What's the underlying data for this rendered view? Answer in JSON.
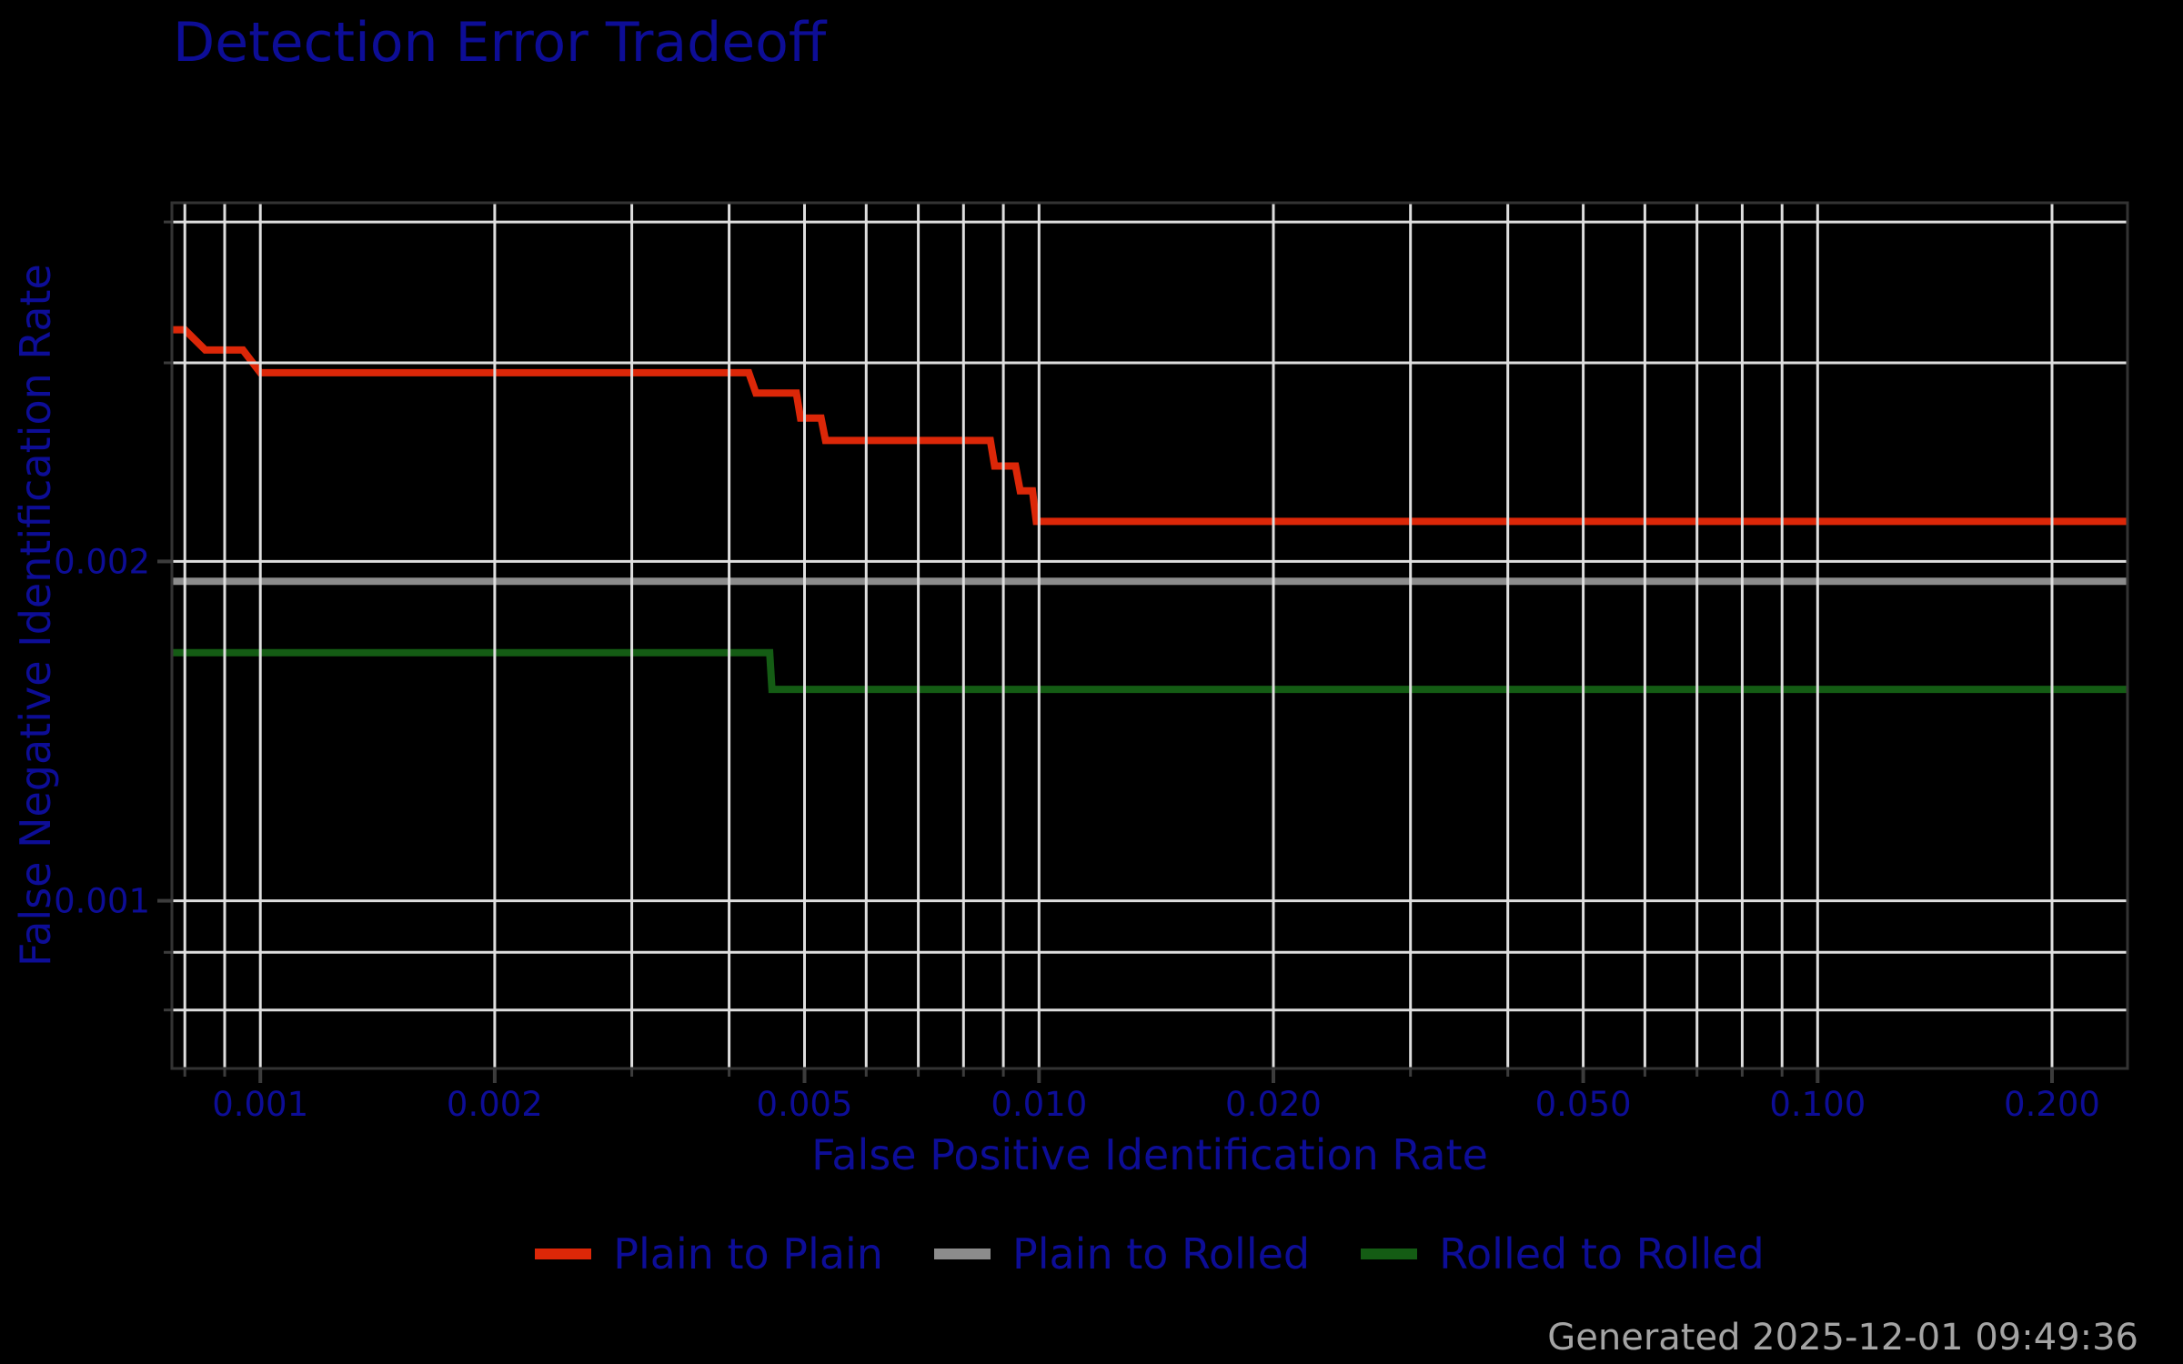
{
  "footer": "Generated 2025-12-01 09:49:36",
  "colors": {
    "background": "#000000",
    "label_blue": "#0d0d96",
    "gridline": "#dedede",
    "spine": "#333333",
    "tick": "#3c3c3c",
    "footer_gray": "#a4a4a4"
  },
  "chart_data": {
    "type": "line",
    "title": "Detection Error Tradeoff",
    "xlabel": "False Positive Identification Rate",
    "ylabel": "False Negative Identification Rate",
    "xscale": "log",
    "yscale": "log",
    "xlim": [
      0.00077,
      0.25
    ],
    "ylim": [
      0.00071,
      0.00416
    ],
    "grid": true,
    "grid_above_data": true,
    "legend_position": "bottom",
    "x_ticks": [
      {
        "value": 0.001,
        "label": "0.001"
      },
      {
        "value": 0.002,
        "label": "0.002"
      },
      {
        "value": 0.005,
        "label": "0.005"
      },
      {
        "value": 0.01,
        "label": "0.010"
      },
      {
        "value": 0.02,
        "label": "0.020"
      },
      {
        "value": 0.05,
        "label": "0.050"
      },
      {
        "value": 0.1,
        "label": "0.100"
      },
      {
        "value": 0.2,
        "label": "0.200"
      }
    ],
    "y_ticks": [
      {
        "value": 0.001,
        "label": "0.001"
      },
      {
        "value": 0.002,
        "label": "0.002"
      }
    ],
    "x_minor_gridlines": [
      0.0008,
      0.0009,
      0.003,
      0.004,
      0.006,
      0.007,
      0.008,
      0.009,
      0.03,
      0.04,
      0.06,
      0.07,
      0.08,
      0.09
    ],
    "y_minor_gridlines": [
      0.0008,
      0.0009,
      0.003,
      0.004
    ],
    "series": [
      {
        "name": "Plain to Plain",
        "color": "#dc2708",
        "points": [
          [
            0.00077,
            0.00321
          ],
          [
            0.0008,
            0.00321
          ],
          [
            0.00085,
            0.00308
          ],
          [
            0.00095,
            0.00308
          ],
          [
            0.001,
            0.00294
          ],
          [
            0.00424,
            0.00294
          ],
          [
            0.00433,
            0.00282
          ],
          [
            0.00488,
            0.00282
          ],
          [
            0.00494,
            0.00268
          ],
          [
            0.00525,
            0.00268
          ],
          [
            0.00532,
            0.00256
          ],
          [
            0.00866,
            0.00256
          ],
          [
            0.00877,
            0.00243
          ],
          [
            0.00933,
            0.00243
          ],
          [
            0.00946,
            0.00231
          ],
          [
            0.00981,
            0.00231
          ],
          [
            0.00992,
            0.00217
          ],
          [
            0.25,
            0.00217
          ]
        ]
      },
      {
        "name": "Plain to Rolled",
        "color": "#8c8c8c",
        "points": [
          [
            0.00077,
            0.00192
          ],
          [
            0.25,
            0.00192
          ]
        ]
      },
      {
        "name": "Rolled to Rolled",
        "color": "#145c14",
        "points": [
          [
            0.00077,
            0.00166
          ],
          [
            0.00451,
            0.00166
          ],
          [
            0.00454,
            0.00154
          ],
          [
            0.25,
            0.00154
          ]
        ]
      }
    ]
  }
}
